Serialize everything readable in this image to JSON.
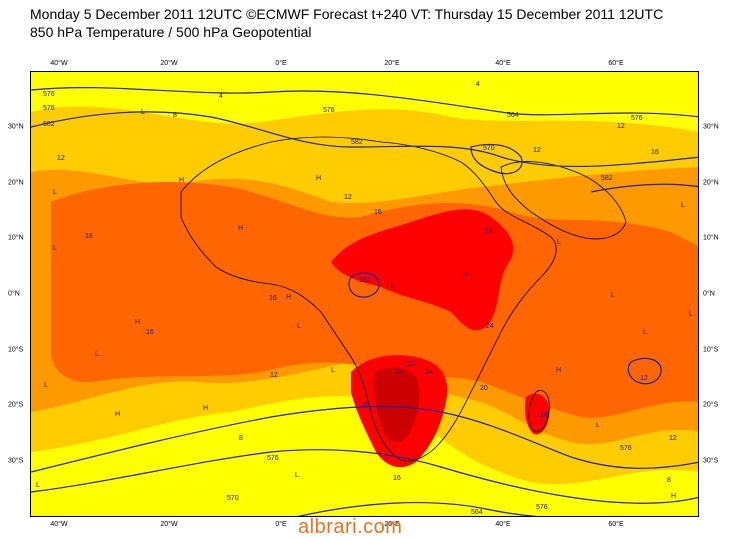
{
  "title": {
    "line1": "Monday 5 December 2011 12UTC ©ECMWF Forecast t+240 VT: Thursday 15 December 2011 12UTC",
    "line2": "850 hPa Temperature / 500 hPa Geopotential"
  },
  "axes": {
    "lon_ticks": [
      "40°W",
      "20°W",
      "0°E",
      "20°E",
      "40°E",
      "60°E"
    ],
    "lat_ticks": [
      "30°N",
      "20°N",
      "10°N",
      "0°N",
      "10°S",
      "20°S",
      "30°S"
    ]
  },
  "colors": {
    "temp_8_12": "#ffff00",
    "temp_12_16": "#ffcc00",
    "temp_16_20": "#ff9900",
    "temp_20_24": "#ff6600",
    "temp_24_28": "#ff0000",
    "temp_28_32": "#cc0000",
    "contour": "#2222aa"
  },
  "geopotential_labels": [
    "576",
    "576",
    "582",
    "576",
    "582",
    "570",
    "564",
    "576",
    "582",
    "576",
    "570",
    "564",
    "576",
    "576",
    "582"
  ],
  "temperature_labels": [
    "12",
    "8",
    "4",
    "4",
    "16",
    "16",
    "12",
    "16",
    "12",
    "24",
    "24",
    "16",
    "12",
    "12",
    "20",
    "24",
    "24",
    "20",
    "24",
    "20",
    "8",
    "16",
    "12",
    "16",
    "8",
    "12"
  ],
  "pressure_markers": [
    "L",
    "H",
    "H",
    "L",
    "H",
    "L",
    "H",
    "H",
    "L",
    "L",
    "H",
    "H",
    "L",
    "L",
    "L",
    "H",
    "H",
    "L",
    "L",
    "L",
    "H",
    "L",
    "L",
    "L",
    "L",
    "L"
  ],
  "watermark": "albrari.com"
}
